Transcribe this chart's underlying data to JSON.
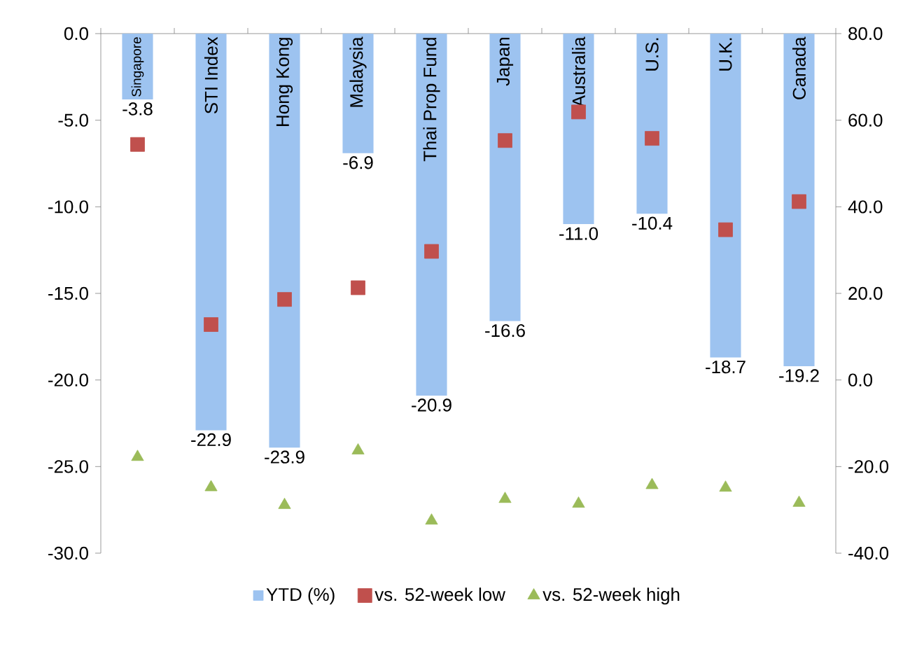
{
  "chart_data": {
    "type": "bar",
    "categories": [
      "Singapore",
      "STI Index",
      "Hong Kong",
      "Malaysia",
      "Thai Prop Fund",
      "Japan",
      "Australia",
      "U.S.",
      "U.K.",
      "Canada"
    ],
    "series": [
      {
        "name": "YTD (%)",
        "color": "#9dc3f0",
        "values": [
          -3.8,
          -22.9,
          -23.9,
          -6.9,
          -20.9,
          -16.6,
          -11.0,
          -10.4,
          -18.7,
          -19.2
        ],
        "value_labels": [
          "-3.8",
          "-22.9",
          "-23.9",
          "-6.9",
          "-20.9",
          "-16.6",
          "-11.0",
          "-10.4",
          "-18.7",
          "-19.2"
        ]
      },
      {
        "name": "vs. 52-week low",
        "type": "scatter",
        "axis": "y2",
        "marker": "square",
        "color": "#c0504d",
        "values": [
          54.4,
          12.8,
          18.6,
          21.3,
          29.7,
          55.3,
          61.9,
          55.8,
          34.7,
          41.2
        ]
      },
      {
        "name": "vs. 52-week high",
        "type": "scatter",
        "axis": "y2",
        "marker": "triangle",
        "color": "#9bbb59",
        "values": [
          -17.8,
          -24.8,
          -28.9,
          -16.3,
          -32.5,
          -27.5,
          -28.6,
          -24.3,
          -24.9,
          -28.4
        ]
      }
    ],
    "ylim": [
      -30,
      0
    ],
    "yticks": [
      {
        "value": 0,
        "label": "0.0"
      },
      {
        "value": -5,
        "label": "-5.0"
      },
      {
        "value": -10,
        "label": "-10.0"
      },
      {
        "value": -15,
        "label": "-15.0"
      },
      {
        "value": -20,
        "label": "-20.0"
      },
      {
        "value": -25,
        "label": "-25.0"
      },
      {
        "value": -30,
        "label": "-30.0"
      }
    ],
    "y2lim": [
      -40,
      80
    ],
    "y2ticks": [
      {
        "value": 80,
        "label": "80.0"
      },
      {
        "value": 60,
        "label": "60.0"
      },
      {
        "value": 40,
        "label": "40.0"
      },
      {
        "value": 20,
        "label": "20.0"
      },
      {
        "value": 0,
        "label": "0.0"
      },
      {
        "value": -20,
        "label": "-20.0"
      },
      {
        "value": -40,
        "label": "-40.0"
      }
    ],
    "legend": "bottom"
  }
}
